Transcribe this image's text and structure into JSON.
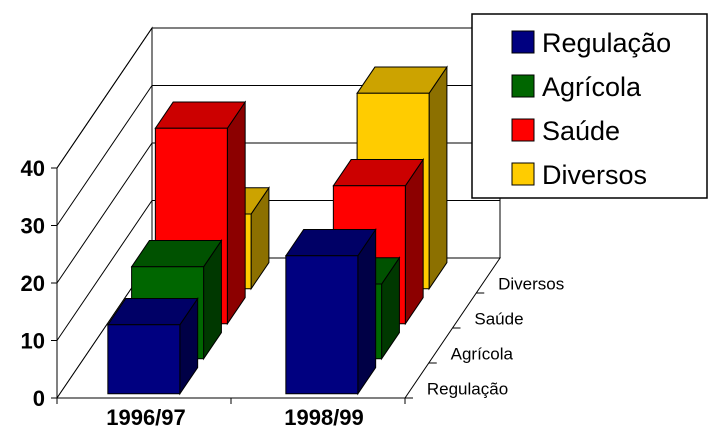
{
  "chart_data": {
    "type": "bar",
    "style": "3d-clustered-depth",
    "categories": [
      "1996/97",
      "1998/99"
    ],
    "series": [
      {
        "name": "Regulação",
        "color": "#000080",
        "values": [
          12,
          24
        ]
      },
      {
        "name": "Agrícola",
        "color": "#006600",
        "values": [
          16,
          13
        ]
      },
      {
        "name": "Saúde",
        "color": "#ff0000",
        "values": [
          34,
          24
        ]
      },
      {
        "name": "Diversos",
        "color": "#ffcc00",
        "values": [
          13,
          34
        ]
      }
    ],
    "depth_labels": [
      "Regulação",
      "Agrícola",
      "Saúde",
      "Diversos"
    ],
    "y_ticks": [
      "0",
      "10",
      "20",
      "30",
      "40"
    ],
    "ylim": [
      0,
      40
    ],
    "legend": {
      "position": "top-right"
    },
    "grid": true,
    "title": "",
    "xlabel": "",
    "ylabel": ""
  }
}
